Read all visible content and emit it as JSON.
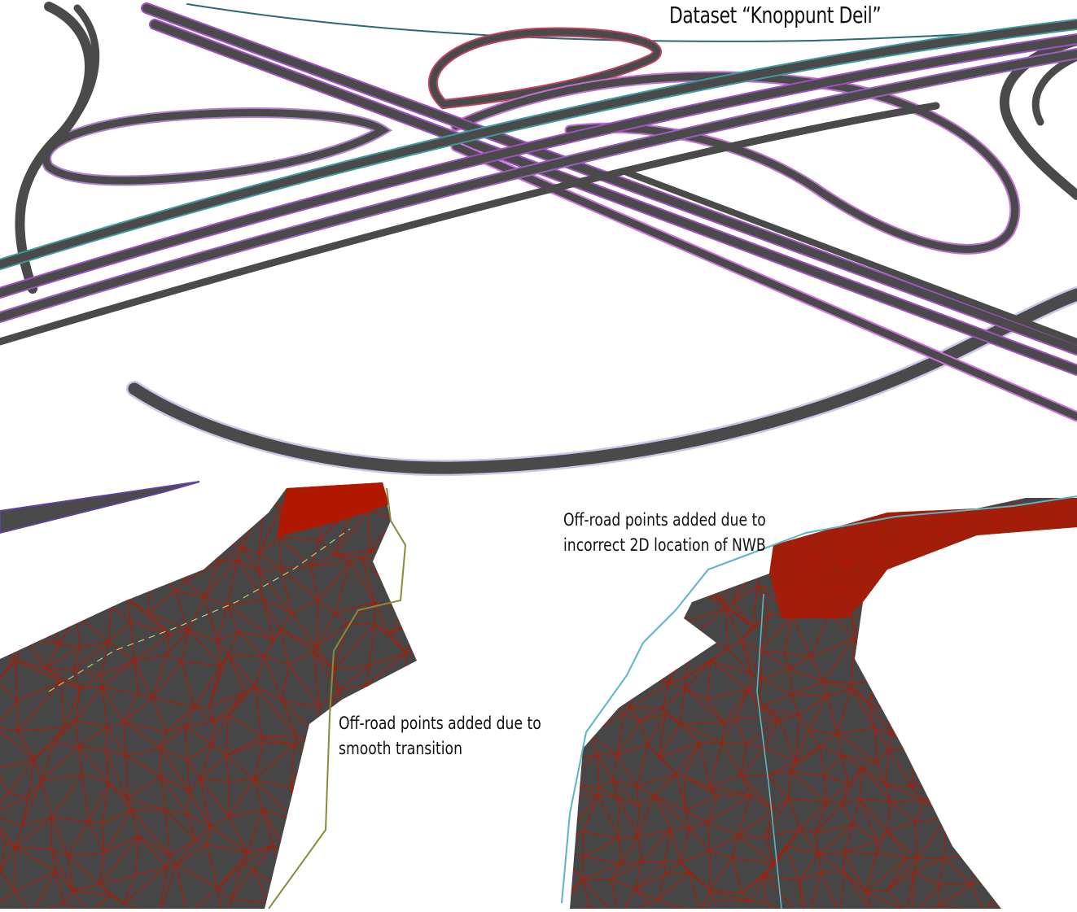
{
  "title": "Dataset “Knoppunt Deil”",
  "panels": {
    "left": {
      "annotation": {
        "line1": "Off-road points added due to",
        "line2": "smooth transition"
      }
    },
    "right": {
      "annotation": {
        "line1": "Off-road points added due to",
        "line2": "incorrect 2D location of NWB"
      }
    }
  },
  "colors": {
    "road": "#4a4a4a",
    "road_edge": "#8a8a8a",
    "centerline_purple": "#a050c0",
    "centerline_teal": "#3f9aa0",
    "mesh_fill": "#464646",
    "mesh_wire": "#b01800",
    "nwb_olive": "#8a8a3a",
    "nwb_cyan": "#5ab4c4"
  }
}
